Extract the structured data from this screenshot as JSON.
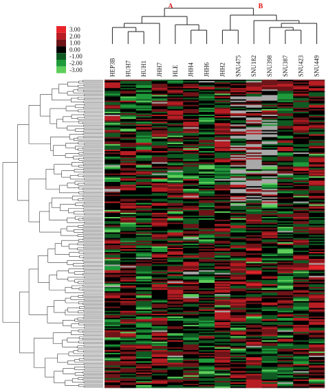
{
  "chart_data": {
    "type": "heatmap",
    "color_scale": {
      "ticks": [
        "3.00",
        "2.00",
        "1.00",
        "0.00",
        "-1.00",
        "-2.00",
        "-3.00"
      ],
      "colors": [
        "#e8242a",
        "#b71c22",
        "#6e1418",
        "#000000",
        "#0f5a22",
        "#1f9a3a",
        "#5dce5a"
      ],
      "missing_color": "#a8a8a8"
    },
    "clusters": [
      "A",
      "B"
    ],
    "columns": [
      "HEP3B",
      "HUH7",
      "HUH1",
      "JHH7",
      "HLE",
      "JHH4",
      "JHH6",
      "JHH2",
      "SNU475",
      "SNU182",
      "SNU398",
      "SNU387",
      "SNU423",
      "SNU449"
    ],
    "row_count": 220,
    "value_range": [
      -3,
      3
    ]
  }
}
